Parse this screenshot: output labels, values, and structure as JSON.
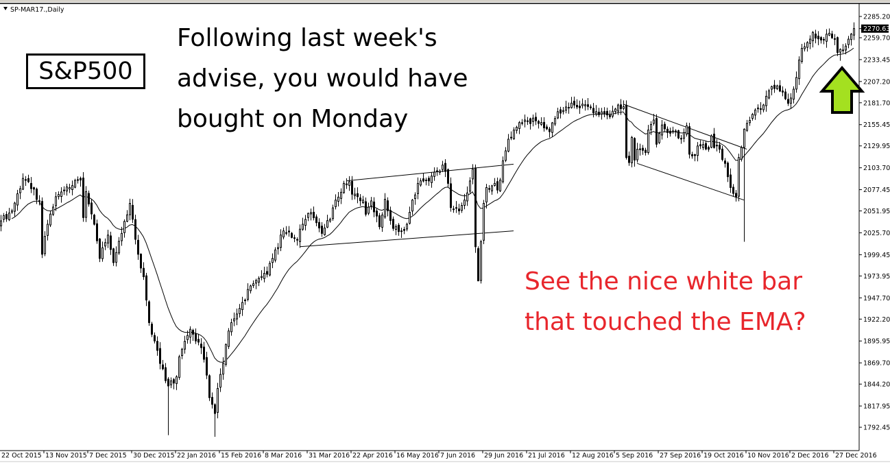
{
  "window": {
    "symbol_label": "SP-MAR17.,Daily"
  },
  "annotations": {
    "logo_text": "S&P500",
    "note_top": [
      "Following last week's",
      "advise, you would have",
      "bought on Monday"
    ],
    "note_bottom": [
      "See the nice white bar",
      "that touched the EMA?"
    ],
    "note_bottom_color": "#e8262c",
    "arrow_color": "#a4e020",
    "arrow_direction": "up"
  },
  "chart_data": {
    "type": "candlestick",
    "title": "",
    "indicator": "EMA",
    "bullish_style": "hollow white",
    "bearish_style": "filled black",
    "ylim": [
      1792.45,
      2285.2
    ],
    "y_ticks": [
      "2285.20",
      "2259.70",
      "2233.45",
      "2207.20",
      "2181.70",
      "2155.45",
      "2129.95",
      "2103.70",
      "2077.45",
      "2051.95",
      "2025.70",
      "1999.45",
      "1973.95",
      "1947.70",
      "1922.20",
      "1895.95",
      "1869.70",
      "1844.20",
      "1817.95",
      "1792.45"
    ],
    "last_price": "2270.63",
    "x_ticks": [
      "22 Oct 2015",
      "13 Nov 2015",
      "7 Dec 2015",
      "30 Dec 2015",
      "22 Jan 2016",
      "15 Feb 2016",
      "8 Mar 2016",
      "31 Mar 2016",
      "22 Apr 2016",
      "16 May 2016",
      "7 Jun 2016",
      "29 Jun 2016",
      "21 Jul 2016",
      "12 Aug 2016",
      "5 Sep 2016",
      "27 Sep 2016",
      "19 Oct 2016",
      "10 Nov 2016",
      "2 Dec 2016",
      "27 Dec 2016"
    ],
    "bars_per_x_tick": 16,
    "close_by_bar": [
      [
        0,
        2040
      ],
      [
        4,
        2052
      ],
      [
        8,
        2091
      ],
      [
        10,
        2087
      ],
      [
        14,
        2064
      ],
      [
        15,
        2000
      ],
      [
        17,
        2036
      ],
      [
        20,
        2069
      ],
      [
        25,
        2080
      ],
      [
        29,
        2089
      ],
      [
        30,
        2044
      ],
      [
        31,
        2075
      ],
      [
        34,
        2036
      ],
      [
        36,
        1995
      ],
      [
        39,
        2023
      ],
      [
        41,
        1990
      ],
      [
        44,
        2025
      ],
      [
        47,
        2061
      ],
      [
        48,
        2042
      ],
      [
        50,
        2000
      ],
      [
        52,
        1973
      ],
      [
        54,
        1918
      ],
      [
        56,
        1896
      ],
      [
        58,
        1869
      ],
      [
        61,
        1842
      ],
      [
        64,
        1853
      ],
      [
        65,
        1877
      ],
      [
        69,
        1910
      ],
      [
        71,
        1896
      ],
      [
        73,
        1888
      ],
      [
        75,
        1855
      ],
      [
        76,
        1828
      ],
      [
        78,
        1809
      ],
      [
        79,
        1839
      ],
      [
        81,
        1869
      ],
      [
        83,
        1908
      ],
      [
        87,
        1935
      ],
      [
        91,
        1962
      ],
      [
        97,
        1976
      ],
      [
        99,
        1995
      ],
      [
        103,
        2028
      ],
      [
        108,
        2017
      ],
      [
        110,
        2036
      ],
      [
        113,
        2050
      ],
      [
        117,
        2025
      ],
      [
        120,
        2042
      ],
      [
        122,
        2065
      ],
      [
        125,
        2085
      ],
      [
        127,
        2087
      ],
      [
        128,
        2072
      ],
      [
        132,
        2065
      ],
      [
        133,
        2048
      ],
      [
        135,
        2064
      ],
      [
        138,
        2033
      ],
      [
        140,
        2066
      ],
      [
        143,
        2031
      ],
      [
        146,
        2028
      ],
      [
        148,
        2036
      ],
      [
        150,
        2065
      ],
      [
        152,
        2085
      ],
      [
        155,
        2089
      ],
      [
        159,
        2099
      ],
      [
        161,
        2107
      ],
      [
        163,
        2085
      ],
      [
        164,
        2056
      ],
      [
        167,
        2052
      ],
      [
        169,
        2065
      ],
      [
        172,
        2102
      ],
      [
        173,
        2009
      ],
      [
        174,
        1968
      ],
      [
        175,
        2015
      ],
      [
        176,
        2061
      ],
      [
        177,
        2080
      ],
      [
        180,
        2085
      ],
      [
        181,
        2077
      ],
      [
        182,
        2089
      ],
      [
        183,
        2112
      ],
      [
        184,
        2124
      ],
      [
        185,
        2138
      ],
      [
        187,
        2149
      ],
      [
        191,
        2161
      ],
      [
        197,
        2158
      ],
      [
        200,
        2147
      ],
      [
        203,
        2171
      ],
      [
        207,
        2176
      ],
      [
        209,
        2179
      ],
      [
        215,
        2176
      ],
      [
        217,
        2171
      ],
      [
        220,
        2169
      ],
      [
        222,
        2165
      ],
      [
        225,
        2179
      ],
      [
        227,
        2177
      ],
      [
        228,
        2116
      ],
      [
        229,
        2110
      ],
      [
        230,
        2140
      ],
      [
        231,
        2113
      ],
      [
        232,
        2126
      ],
      [
        235,
        2122
      ],
      [
        236,
        2149
      ],
      [
        238,
        2161
      ],
      [
        239,
        2132
      ],
      [
        241,
        2155
      ],
      [
        243,
        2146
      ],
      [
        246,
        2147
      ],
      [
        248,
        2139
      ],
      [
        250,
        2154
      ],
      [
        251,
        2120
      ],
      [
        252,
        2118
      ],
      [
        255,
        2130
      ],
      [
        258,
        2126
      ],
      [
        259,
        2142
      ],
      [
        260,
        2128
      ],
      [
        262,
        2126
      ],
      [
        264,
        2109
      ],
      [
        265,
        2093
      ],
      [
        266,
        2080
      ],
      [
        267,
        2073
      ],
      [
        268,
        2069
      ],
      [
        269,
        2116
      ],
      [
        270,
        2128
      ],
      [
        271,
        2150
      ],
      [
        272,
        2157
      ],
      [
        275,
        2173
      ],
      [
        278,
        2179
      ],
      [
        280,
        2196
      ],
      [
        283,
        2202
      ],
      [
        287,
        2181
      ],
      [
        289,
        2198
      ],
      [
        290,
        2212
      ],
      [
        291,
        2233
      ],
      [
        292,
        2247
      ],
      [
        295,
        2258
      ],
      [
        296,
        2266
      ],
      [
        299,
        2257
      ],
      [
        301,
        2264
      ],
      [
        304,
        2258
      ],
      [
        305,
        2242
      ],
      [
        307,
        2245
      ],
      [
        309,
        2258
      ],
      [
        310,
        2264
      ],
      [
        311,
        2270.63
      ]
    ],
    "notable_lows": [
      [
        61,
        1783
      ],
      [
        78,
        1781
      ],
      [
        174,
        1968
      ],
      [
        271,
        2015
      ],
      [
        306,
        2232
      ]
    ],
    "trend_lines": [
      {
        "from": [
          126,
          2088
        ],
        "to": [
          187,
          2108
        ]
      },
      {
        "from": [
          109,
          2009
        ],
        "to": [
          187,
          2028
        ]
      },
      {
        "from": [
          227,
          2180
        ],
        "to": [
          272,
          2126
        ]
      },
      {
        "from": [
          232,
          2109
        ],
        "to": [
          271,
          2065
        ]
      }
    ]
  }
}
